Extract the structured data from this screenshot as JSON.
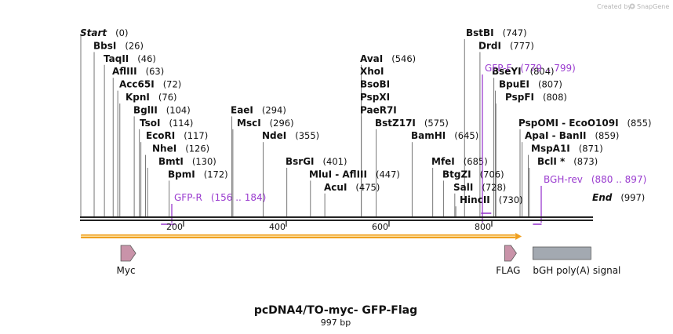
{
  "credit": {
    "prefix": "Created by",
    "brand": "SnapGene"
  },
  "sequence_length": 997,
  "title": "pcDNA4/TO-myc- GFP-Flag",
  "subtitle": "997 bp",
  "start_label": {
    "name": "Start",
    "pos": "(0)"
  },
  "end_label": {
    "name": "End",
    "pos": "(997)"
  },
  "sites": [
    {
      "name": "BbsI",
      "pos": "(26)",
      "loc": 26
    },
    {
      "name": "TaqII",
      "pos": "(46)",
      "loc": 46
    },
    {
      "name": "AflIII",
      "pos": "(63)",
      "loc": 63
    },
    {
      "name": "Acc65I",
      "pos": "(72)",
      "loc": 72
    },
    {
      "name": "KpnI",
      "pos": "(76)",
      "loc": 76
    },
    {
      "name": "BglII",
      "pos": "(104)",
      "loc": 104
    },
    {
      "name": "TsoI",
      "pos": "(114)",
      "loc": 114
    },
    {
      "name": "EcoRI",
      "pos": "(117)",
      "loc": 117
    },
    {
      "name": "NheI",
      "pos": "(126)",
      "loc": 126
    },
    {
      "name": "BmtI",
      "pos": "(130)",
      "loc": 130
    },
    {
      "name": "BpmI",
      "pos": "(172)",
      "loc": 172
    },
    {
      "name": "EaeI",
      "pos": "(294)",
      "loc": 294
    },
    {
      "name": "MscI",
      "pos": "(296)",
      "loc": 296
    },
    {
      "name": "NdeI",
      "pos": "(355)",
      "loc": 355
    },
    {
      "name": "BsrGI",
      "pos": "(401)",
      "loc": 401
    },
    {
      "name": "MluI  -  AflIII",
      "pos": "(447)",
      "loc": 447
    },
    {
      "name": "AcuI",
      "pos": "(475)",
      "loc": 475
    },
    {
      "name": "AvaI",
      "pos": "(546)",
      "loc": 546
    },
    {
      "name": "XhoI",
      "pos": "",
      "loc": 546
    },
    {
      "name": "BsoBI",
      "pos": "",
      "loc": 546
    },
    {
      "name": "PspXI",
      "pos": "",
      "loc": 546
    },
    {
      "name": "PaeR7I",
      "pos": "",
      "loc": 546
    },
    {
      "name": "BstZ17I",
      "pos": "(575)",
      "loc": 575
    },
    {
      "name": "BamHI",
      "pos": "(645)",
      "loc": 645
    },
    {
      "name": "MfeI",
      "pos": "(685)",
      "loc": 685
    },
    {
      "name": "BtgZI",
      "pos": "(706)",
      "loc": 706
    },
    {
      "name": "SalI",
      "pos": "(728)",
      "loc": 728
    },
    {
      "name": "HincII",
      "pos": "(730)",
      "loc": 730
    },
    {
      "name": "BstBI",
      "pos": "(747)",
      "loc": 747
    },
    {
      "name": "DrdI",
      "pos": "(777)",
      "loc": 777
    },
    {
      "name": "BseYI",
      "pos": "(804)",
      "loc": 804
    },
    {
      "name": "BpuEI",
      "pos": "(807)",
      "loc": 807
    },
    {
      "name": "PspFI",
      "pos": "(808)",
      "loc": 808
    },
    {
      "name": "PspOMI  -  EcoO109I",
      "pos": "(855)",
      "loc": 855
    },
    {
      "name": "ApaI  -  BanII",
      "pos": "(859)",
      "loc": 859
    },
    {
      "name": "MspA1I",
      "pos": "(871)",
      "loc": 871
    },
    {
      "name": "BclI *",
      "pos": "(873)",
      "loc": 873
    }
  ],
  "primers": [
    {
      "name": "GFP-R",
      "range": "(156 .. 184)",
      "start": 156,
      "end": 184,
      "direction": "reverse"
    },
    {
      "name": "GFP-F",
      "range": "(779 .. 799)",
      "start": 779,
      "end": 799,
      "direction": "forward"
    },
    {
      "name": "BGH-rev",
      "range": "(880 .. 897)",
      "start": 880,
      "end": 897,
      "direction": "reverse"
    }
  ],
  "ticks": [
    {
      "value": 200,
      "label": "200"
    },
    {
      "value": 400,
      "label": "400"
    },
    {
      "value": 600,
      "label": "600"
    },
    {
      "value": 800,
      "label": "800"
    }
  ],
  "orf": {
    "start": 0,
    "end": 846,
    "color": "#f0a020"
  },
  "features": [
    {
      "name": "Myc",
      "start": 78,
      "end": 107,
      "shape": "arrow",
      "color": "#c993a9"
    },
    {
      "name": "FLAG",
      "start": 825,
      "end": 848,
      "shape": "arrow",
      "color": "#c993a9"
    },
    {
      "name": "bGH poly(A) signal",
      "start": 880,
      "end": 993,
      "shape": "box",
      "color": "#a3a9b1"
    }
  ],
  "colors": {
    "primer": "#9a3ccf",
    "backbone": "#222222"
  }
}
